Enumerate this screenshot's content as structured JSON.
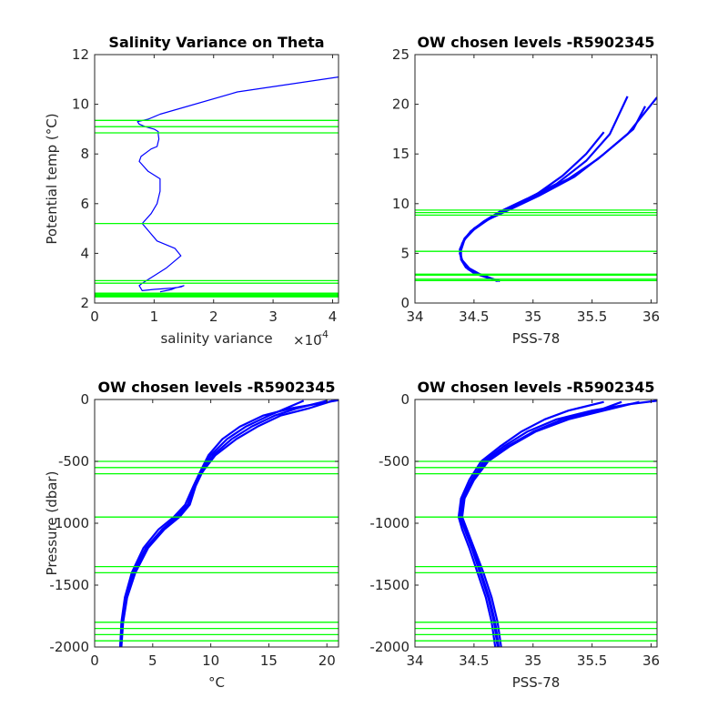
{
  "colors": {
    "profile": "#0000ff",
    "level_lines": "#00ff00",
    "axes": "#262626",
    "background": "#ffffff"
  },
  "chart_data": [
    {
      "type": "line",
      "title": "Salinity Variance on Theta",
      "xlabel": "salinity variance",
      "x_exponent_label": "×10",
      "x_exponent_sup": "-4",
      "ylabel": "Potential temp (°C)",
      "xlim": [
        0,
        0.00041
      ],
      "ylim": [
        2,
        12
      ],
      "xticks": [
        0,
        1,
        2,
        3,
        4
      ],
      "xtick_scale": 0.0001,
      "yticks": [
        2,
        4,
        6,
        8,
        10,
        12
      ],
      "series": [
        {
          "x": [
            0.00011,
            0.00012,
            0.00013,
            0.000135,
            0.00015,
            0.000145,
            0.00013,
            0.0001,
            8e-05,
            7.5e-05,
            8e-05,
            0.0001,
            0.00012,
            0.000145,
            0.000135,
            0.000105,
            8e-05,
            9.5e-05,
            0.000105,
            0.00011,
            0.00011,
            9e-05,
            7.5e-05,
            7.8e-05,
            9.5e-05,
            0.000105,
            0.000107,
            0.000108,
            0.000107,
            0.000107,
            0.0001,
            8.5e-05,
            7.5e-05,
            7.2e-05,
            9e-05,
            0.00011,
            0.00024,
            0.00041
          ],
          "y": [
            2.45,
            2.5,
            2.55,
            2.6,
            2.7,
            2.65,
            2.6,
            2.55,
            2.5,
            2.7,
            2.8,
            3.1,
            3.4,
            3.9,
            4.2,
            4.5,
            5.2,
            5.6,
            6.0,
            6.5,
            7.0,
            7.3,
            7.7,
            7.9,
            8.2,
            8.3,
            8.5,
            8.6,
            8.8,
            8.9,
            9.0,
            9.1,
            9.2,
            9.3,
            9.4,
            9.6,
            10.5,
            11.1
          ]
        }
      ],
      "hlines": [
        2.25,
        2.28,
        2.32,
        2.36,
        2.4,
        2.8,
        2.9,
        5.2,
        8.85,
        9.1,
        9.35
      ]
    },
    {
      "type": "line",
      "title": "OW chosen levels -R5902345",
      "xlabel": "PSS-78",
      "ylabel": "",
      "xlim": [
        34,
        36.05
      ],
      "ylim": [
        0,
        25
      ],
      "xticks": [
        34,
        34.5,
        35,
        35.5,
        36
      ],
      "yticks": [
        0,
        5,
        10,
        15,
        20,
        25
      ],
      "series": [
        {
          "x": [
            34.7,
            34.63,
            34.53,
            34.45,
            34.4,
            34.38,
            34.4,
            34.45,
            34.55,
            34.68,
            34.85,
            35.05,
            35.3,
            35.55,
            35.8,
            36.05
          ],
          "y": [
            2.2,
            2.5,
            2.9,
            3.4,
            4.2,
            5.0,
            6.0,
            6.9,
            7.9,
            8.8,
            9.8,
            11.0,
            12.5,
            14.5,
            17.0,
            20.7
          ]
        },
        {
          "x": [
            34.72,
            34.64,
            34.55,
            34.46,
            34.4,
            34.38,
            34.41,
            34.47,
            34.58,
            34.72,
            34.95,
            35.2,
            35.45,
            35.65,
            35.8
          ],
          "y": [
            2.2,
            2.5,
            2.9,
            3.5,
            4.3,
            5.2,
            6.2,
            7.2,
            8.2,
            9.2,
            10.5,
            12.0,
            14.3,
            17.0,
            20.8
          ]
        },
        {
          "x": [
            34.68,
            34.6,
            34.5,
            34.43,
            34.39,
            34.39,
            34.42,
            34.5,
            34.62,
            34.8,
            35.0,
            35.25,
            35.45,
            35.6
          ],
          "y": [
            2.3,
            2.6,
            3.0,
            3.6,
            4.4,
            5.3,
            6.4,
            7.4,
            8.4,
            9.4,
            10.7,
            12.8,
            15.0,
            17.2
          ]
        },
        {
          "x": [
            34.7,
            34.62,
            34.52,
            34.44,
            34.39,
            34.38,
            34.42,
            34.5,
            34.63,
            34.82,
            35.05,
            35.35,
            35.6,
            35.85,
            35.95
          ],
          "y": [
            2.2,
            2.6,
            3.0,
            3.6,
            4.5,
            5.4,
            6.5,
            7.5,
            8.5,
            9.5,
            10.8,
            12.7,
            15.0,
            17.5,
            19.8
          ]
        }
      ],
      "hlines": [
        2.25,
        2.4,
        2.8,
        2.9,
        5.2,
        8.85,
        9.1,
        9.35
      ]
    },
    {
      "type": "line",
      "title": "OW chosen levels -R5902345",
      "xlabel": "°C",
      "ylabel": "Pressure (dbar)",
      "xlim": [
        0,
        21
      ],
      "ylim": [
        -2000,
        0
      ],
      "xticks": [
        0,
        5,
        10,
        15,
        20
      ],
      "yticks": [
        -2000,
        -1500,
        -1000,
        -500,
        0
      ],
      "series": [
        {
          "x": [
            2.2,
            2.3,
            2.6,
            3.2,
            4.2,
            5.5,
            6.8,
            7.8,
            8.5,
            9.0,
            9.8,
            11.0,
            12.5,
            14.5,
            17.0,
            19.5,
            21.0
          ],
          "y": [
            -2000,
            -1800,
            -1600,
            -1400,
            -1200,
            -1050,
            -950,
            -850,
            -700,
            -600,
            -450,
            -320,
            -220,
            -130,
            -70,
            -30,
            -5
          ]
        },
        {
          "x": [
            2.3,
            2.45,
            2.8,
            3.5,
            4.6,
            6.0,
            7.3,
            8.2,
            8.7,
            9.2,
            10.2,
            11.8,
            13.5,
            15.5,
            17.5,
            20.0
          ],
          "y": [
            -2000,
            -1800,
            -1600,
            -1400,
            -1200,
            -1050,
            -950,
            -850,
            -700,
            -600,
            -450,
            -320,
            -220,
            -130,
            -70,
            -10
          ]
        },
        {
          "x": [
            2.2,
            2.35,
            2.7,
            3.3,
            4.4,
            5.8,
            7.0,
            8.0,
            8.6,
            9.1,
            10.0,
            11.4,
            13.0,
            15.0,
            16.5,
            18.0
          ],
          "y": [
            -2000,
            -1800,
            -1600,
            -1400,
            -1200,
            -1050,
            -950,
            -850,
            -700,
            -600,
            -450,
            -320,
            -220,
            -130,
            -70,
            -10
          ]
        },
        {
          "x": [
            2.25,
            2.4,
            2.75,
            3.4,
            4.5,
            5.9,
            7.1,
            8.1,
            8.65,
            9.15,
            10.4,
            12.2,
            14.0,
            16.0,
            18.5,
            20.5
          ],
          "y": [
            -2000,
            -1800,
            -1600,
            -1400,
            -1200,
            -1050,
            -950,
            -850,
            -700,
            -600,
            -450,
            -320,
            -220,
            -130,
            -70,
            -10
          ]
        }
      ],
      "hlines": [
        -500,
        -550,
        -600,
        -950,
        -1350,
        -1400,
        -1800,
        -1850,
        -1900,
        -1950
      ]
    },
    {
      "type": "line",
      "title": "OW chosen levels -R5902345",
      "xlabel": "PSS-78",
      "ylabel": "",
      "xlim": [
        34,
        36.05
      ],
      "ylim": [
        -2000,
        0
      ],
      "xticks": [
        34,
        34.5,
        35,
        35.5,
        36
      ],
      "yticks": [
        -2000,
        -1500,
        -1000,
        -500,
        0
      ],
      "series": [
        {
          "x": [
            34.7,
            34.67,
            34.62,
            34.55,
            34.48,
            34.42,
            34.38,
            34.4,
            34.48,
            34.58,
            34.75,
            34.95,
            35.2,
            35.5,
            35.8,
            36.05
          ],
          "y": [
            -2000,
            -1800,
            -1600,
            -1400,
            -1200,
            -1050,
            -950,
            -800,
            -650,
            -500,
            -380,
            -260,
            -160,
            -90,
            -40,
            -10
          ]
        },
        {
          "x": [
            34.73,
            34.7,
            34.65,
            34.58,
            34.5,
            34.44,
            34.4,
            34.42,
            34.5,
            34.62,
            34.8,
            35.02,
            35.3,
            35.6,
            35.9
          ],
          "y": [
            -2000,
            -1800,
            -1600,
            -1400,
            -1200,
            -1050,
            -950,
            -800,
            -650,
            -500,
            -380,
            -260,
            -160,
            -90,
            -20
          ]
        },
        {
          "x": [
            34.68,
            34.65,
            34.6,
            34.53,
            34.46,
            34.4,
            34.37,
            34.39,
            34.46,
            34.56,
            34.72,
            34.9,
            35.1,
            35.3,
            35.6
          ],
          "y": [
            -2000,
            -1800,
            -1600,
            -1400,
            -1200,
            -1050,
            -950,
            -800,
            -650,
            -500,
            -380,
            -260,
            -160,
            -90,
            -20
          ]
        },
        {
          "x": [
            34.71,
            34.68,
            34.63,
            34.56,
            34.49,
            34.43,
            34.39,
            34.41,
            34.49,
            34.6,
            34.78,
            35.0,
            35.25,
            35.55,
            35.75
          ],
          "y": [
            -2000,
            -1800,
            -1600,
            -1400,
            -1200,
            -1050,
            -950,
            -800,
            -650,
            -500,
            -380,
            -260,
            -160,
            -90,
            -20
          ]
        }
      ],
      "hlines": [
        -500,
        -550,
        -600,
        -950,
        -1350,
        -1400,
        -1800,
        -1850,
        -1900,
        -1950
      ]
    }
  ]
}
